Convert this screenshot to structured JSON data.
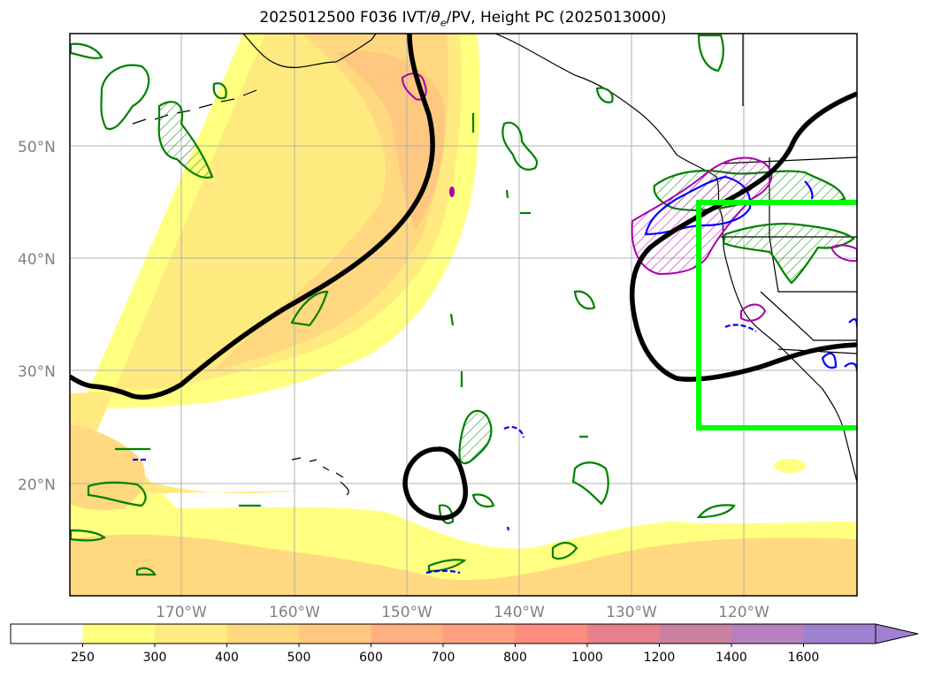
{
  "title": {
    "date": "2025012500",
    "forecast": "F036",
    "ivt": "IVT/",
    "theta": "θ",
    "theta_sub": "e",
    "rest": "/PV, Height PC (2025013000)"
  },
  "map": {
    "lat_labels": [
      "50°N",
      "40°N",
      "30°N",
      "20°N"
    ],
    "lon_labels": [
      "170°W",
      "160°W",
      "150°W",
      "140°W",
      "130°W",
      "120°W"
    ],
    "fill_colors": [
      "#ffff80",
      "#ffe680",
      "#ffd480",
      "#ffc080"
    ],
    "box_color": "#00ff00",
    "contour_colors": {
      "height": "#000000",
      "pv": "#008000",
      "theta": "#aa00aa",
      "dash": "#0000ff"
    }
  },
  "colorbar": {
    "ticks": [
      "250",
      "300",
      "400",
      "500",
      "600",
      "700",
      "800",
      "1000",
      "1200",
      "1400",
      "1600"
    ],
    "colors": [
      "#ffffff",
      "#ffff80",
      "#ffeb80",
      "#ffd980",
      "#ffc880",
      "#ffb080",
      "#ff9f80",
      "#ff8c80",
      "#e8808c",
      "#cc80a0",
      "#b880c0",
      "#a080d0"
    ]
  }
}
